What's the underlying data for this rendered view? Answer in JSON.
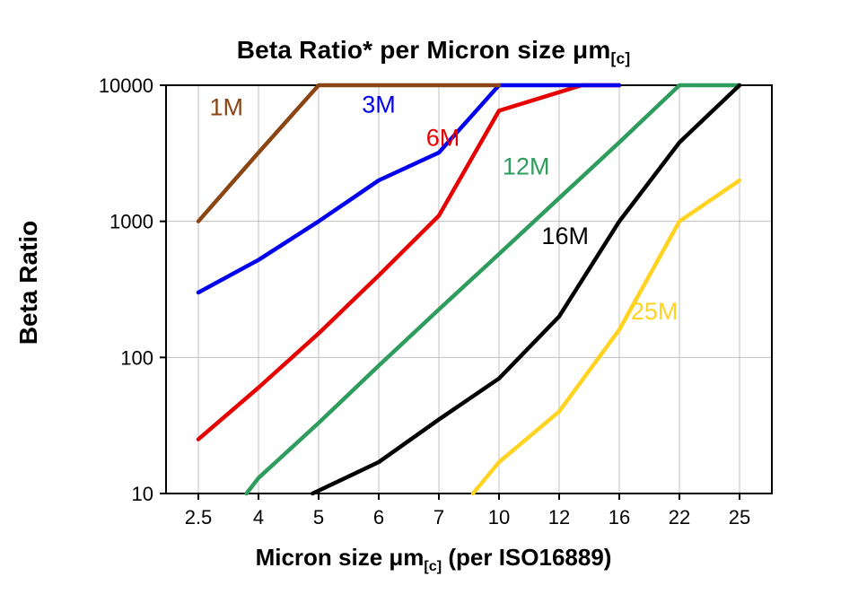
{
  "title": {
    "prefix": "Beta Ratio* per Micron size ",
    "mu": "μm",
    "sub": "[c]"
  },
  "x_axis_label": {
    "prefix": "Micron size ",
    "mu": "μm",
    "sub": "[c]",
    "suffix": " (per ISO16889)"
  },
  "y_axis_label": "Beta Ratio",
  "chart_data": {
    "type": "line",
    "title": "Beta Ratio* per Micron size μm[c]",
    "xlabel": "Micron size μm[c] (per ISO16889)",
    "ylabel": "Beta Ratio",
    "x_scale": "categorical",
    "y_scale": "log",
    "ylim": [
      10,
      10000
    ],
    "x_categories": [
      2.5,
      4,
      5,
      6,
      7,
      10,
      12,
      16,
      22,
      25
    ],
    "y_ticks": [
      10,
      100,
      1000,
      10000
    ],
    "grid": {
      "vertical_at_categories": true,
      "horizontal_at": [
        100,
        1000
      ],
      "color": "#c0c0c0"
    },
    "legend_position": "inline-labels",
    "series": [
      {
        "name": "1M",
        "color": "#8B4513",
        "z": 3,
        "points": [
          [
            2.5,
            1000
          ],
          [
            4,
            3200
          ],
          [
            5,
            10000
          ],
          [
            7,
            10000
          ],
          [
            10,
            10000
          ]
        ],
        "label_at": [
          3.2,
          6000
        ]
      },
      {
        "name": "3M",
        "color": "#0000EE",
        "z": 2,
        "points": [
          [
            2.5,
            300
          ],
          [
            4,
            520
          ],
          [
            5,
            1000
          ],
          [
            6,
            2000
          ],
          [
            7,
            3200
          ],
          [
            10,
            10000
          ],
          [
            16,
            10000
          ]
        ],
        "label_at": [
          6.0,
          6300
        ]
      },
      {
        "name": "6M",
        "color": "#E60000",
        "z": 1,
        "points": [
          [
            2.5,
            25
          ],
          [
            4,
            60
          ],
          [
            5,
            150
          ],
          [
            6,
            400
          ],
          [
            7,
            1100
          ],
          [
            10,
            6500
          ],
          [
            13.5,
            10000
          ],
          [
            16,
            10000
          ]
        ],
        "label_at": [
          7.2,
          3600
        ]
      },
      {
        "name": "12M",
        "color": "#2E9C5C",
        "z": 4,
        "points": [
          [
            3.7,
            10
          ],
          [
            4,
            13
          ],
          [
            5,
            33
          ],
          [
            6,
            87
          ],
          [
            7,
            225
          ],
          [
            10,
            575
          ],
          [
            12,
            1480
          ],
          [
            16,
            3800
          ],
          [
            22,
            10000
          ],
          [
            25,
            10000
          ]
        ],
        "label_at": [
          10.9,
          2200
        ]
      },
      {
        "name": "16M",
        "color": "#000000",
        "z": 5,
        "points": [
          [
            4.9,
            10
          ],
          [
            6,
            17
          ],
          [
            7,
            35
          ],
          [
            10,
            70
          ],
          [
            12,
            200
          ],
          [
            16,
            1000
          ],
          [
            22,
            3800
          ],
          [
            25,
            10000
          ]
        ],
        "label_at": [
          12.4,
          680
        ]
      },
      {
        "name": "25M",
        "color": "#FFD320",
        "z": 6,
        "points": [
          [
            8.7,
            10
          ],
          [
            10,
            17
          ],
          [
            12,
            40
          ],
          [
            16,
            160
          ],
          [
            22,
            1000
          ],
          [
            25,
            2000
          ]
        ],
        "label_at": [
          19.5,
          190
        ]
      }
    ]
  }
}
